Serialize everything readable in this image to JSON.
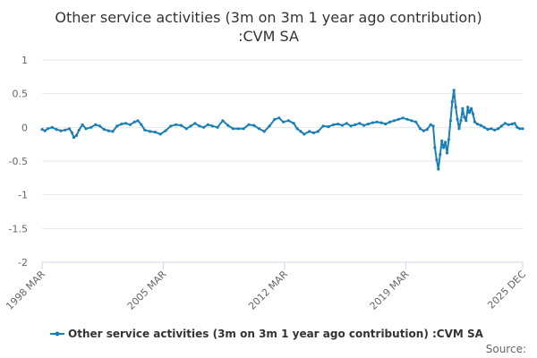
{
  "chart_data": {
    "type": "line",
    "title_lines": [
      "Other service activities (3m on 3m 1 year ago contribution)",
      ":CVM SA"
    ],
    "ylim": [
      -2,
      1
    ],
    "yticks": [
      "1",
      "0.5",
      "0",
      "-0.5",
      "-1",
      "-1.5",
      "-2"
    ],
    "ytick_values": [
      1,
      0.5,
      0,
      -0.5,
      -1,
      -1.5,
      -2
    ],
    "x_range": [
      1998.167,
      2025.917
    ],
    "xticks": [
      {
        "label": "1998 MAR",
        "x": 1998.167
      },
      {
        "label": "2005 MAR",
        "x": 2005.167
      },
      {
        "label": "2012 MAR",
        "x": 2012.167
      },
      {
        "label": "2019 MAR",
        "x": 2019.167
      },
      {
        "label": "2025 DEC",
        "x": 2025.917
      }
    ],
    "series": [
      {
        "name": "Other service activities (3m on 3m 1 year ago contribution) :CVM SA",
        "color": "#1a7fb5",
        "points": [
          [
            1998.17,
            -0.03
          ],
          [
            1998.33,
            -0.05
          ],
          [
            1998.5,
            -0.02
          ],
          [
            1998.75,
            0.0
          ],
          [
            1999.0,
            -0.03
          ],
          [
            1999.25,
            -0.05
          ],
          [
            1999.5,
            -0.04
          ],
          [
            1999.75,
            -0.02
          ],
          [
            1999.9,
            -0.08
          ],
          [
            2000.0,
            -0.15
          ],
          [
            2000.15,
            -0.12
          ],
          [
            2000.3,
            -0.04
          ],
          [
            2000.5,
            0.04
          ],
          [
            2000.7,
            -0.02
          ],
          [
            2001.0,
            0.0
          ],
          [
            2001.25,
            0.04
          ],
          [
            2001.5,
            0.02
          ],
          [
            2001.75,
            -0.03
          ],
          [
            2002.0,
            -0.05
          ],
          [
            2002.25,
            -0.06
          ],
          [
            2002.5,
            0.02
          ],
          [
            2002.75,
            0.05
          ],
          [
            2003.0,
            0.06
          ],
          [
            2003.25,
            0.04
          ],
          [
            2003.5,
            0.08
          ],
          [
            2003.7,
            0.1
          ],
          [
            2003.9,
            0.04
          ],
          [
            2004.1,
            -0.04
          ],
          [
            2004.4,
            -0.06
          ],
          [
            2004.7,
            -0.07
          ],
          [
            2005.0,
            -0.1
          ],
          [
            2005.3,
            -0.05
          ],
          [
            2005.6,
            0.02
          ],
          [
            2005.9,
            0.04
          ],
          [
            2006.2,
            0.03
          ],
          [
            2006.5,
            -0.02
          ],
          [
            2006.75,
            0.02
          ],
          [
            2007.0,
            0.06
          ],
          [
            2007.25,
            0.02
          ],
          [
            2007.5,
            0.0
          ],
          [
            2007.75,
            0.04
          ],
          [
            2008.0,
            0.02
          ],
          [
            2008.3,
            0.0
          ],
          [
            2008.6,
            0.1
          ],
          [
            2008.9,
            0.03
          ],
          [
            2009.2,
            -0.02
          ],
          [
            2009.5,
            -0.02
          ],
          [
            2009.8,
            -0.02
          ],
          [
            2010.1,
            0.04
          ],
          [
            2010.4,
            0.03
          ],
          [
            2010.7,
            -0.02
          ],
          [
            2011.0,
            -0.06
          ],
          [
            2011.3,
            0.02
          ],
          [
            2011.6,
            0.12
          ],
          [
            2011.85,
            0.14
          ],
          [
            2012.1,
            0.08
          ],
          [
            2012.4,
            0.1
          ],
          [
            2012.7,
            0.06
          ],
          [
            2012.9,
            -0.02
          ],
          [
            2013.1,
            -0.06
          ],
          [
            2013.3,
            -0.1
          ],
          [
            2013.6,
            -0.06
          ],
          [
            2013.85,
            -0.08
          ],
          [
            2014.1,
            -0.06
          ],
          [
            2014.4,
            0.02
          ],
          [
            2014.7,
            0.01
          ],
          [
            2015.0,
            0.04
          ],
          [
            2015.25,
            0.05
          ],
          [
            2015.5,
            0.03
          ],
          [
            2015.75,
            0.06
          ],
          [
            2016.0,
            0.02
          ],
          [
            2016.25,
            0.04
          ],
          [
            2016.5,
            0.06
          ],
          [
            2016.75,
            0.03
          ],
          [
            2017.0,
            0.05
          ],
          [
            2017.25,
            0.07
          ],
          [
            2017.5,
            0.08
          ],
          [
            2017.75,
            0.07
          ],
          [
            2018.0,
            0.05
          ],
          [
            2018.25,
            0.08
          ],
          [
            2018.5,
            0.1
          ],
          [
            2018.75,
            0.12
          ],
          [
            2019.0,
            0.14
          ],
          [
            2019.25,
            0.12
          ],
          [
            2019.5,
            0.1
          ],
          [
            2019.75,
            0.08
          ],
          [
            2020.0,
            -0.02
          ],
          [
            2020.2,
            -0.05
          ],
          [
            2020.4,
            -0.03
          ],
          [
            2020.6,
            0.04
          ],
          [
            2020.75,
            0.02
          ],
          [
            2020.85,
            -0.3
          ],
          [
            2020.95,
            -0.48
          ],
          [
            2021.05,
            -0.62
          ],
          [
            2021.15,
            -0.4
          ],
          [
            2021.25,
            -0.2
          ],
          [
            2021.35,
            -0.3
          ],
          [
            2021.45,
            -0.22
          ],
          [
            2021.55,
            -0.38
          ],
          [
            2021.65,
            -0.18
          ],
          [
            2021.75,
            0.1
          ],
          [
            2021.85,
            0.38
          ],
          [
            2021.95,
            0.55
          ],
          [
            2022.05,
            0.3
          ],
          [
            2022.15,
            0.12
          ],
          [
            2022.25,
            -0.02
          ],
          [
            2022.35,
            0.1
          ],
          [
            2022.45,
            0.28
          ],
          [
            2022.55,
            0.15
          ],
          [
            2022.65,
            0.1
          ],
          [
            2022.75,
            0.3
          ],
          [
            2022.85,
            0.22
          ],
          [
            2022.95,
            0.28
          ],
          [
            2023.05,
            0.2
          ],
          [
            2023.15,
            0.08
          ],
          [
            2023.3,
            0.05
          ],
          [
            2023.5,
            0.03
          ],
          [
            2023.7,
            0.0
          ],
          [
            2023.9,
            -0.03
          ],
          [
            2024.1,
            -0.02
          ],
          [
            2024.3,
            -0.04
          ],
          [
            2024.5,
            -0.02
          ],
          [
            2024.7,
            0.02
          ],
          [
            2024.9,
            0.06
          ],
          [
            2025.1,
            0.04
          ],
          [
            2025.3,
            0.05
          ],
          [
            2025.45,
            0.06
          ],
          [
            2025.6,
            0.0
          ],
          [
            2025.75,
            -0.02
          ],
          [
            2025.917,
            -0.02
          ]
        ]
      }
    ],
    "legend_label": "Other service activities (3m on 3m 1 year ago contribution) :CVM SA",
    "source_label": "Source:"
  }
}
